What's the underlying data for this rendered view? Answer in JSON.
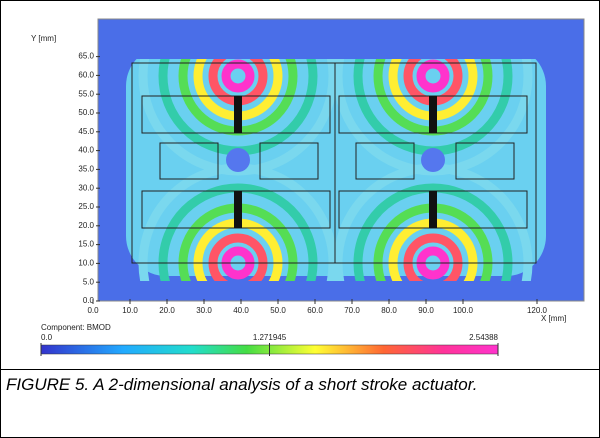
{
  "figure": {
    "caption": "FIGURE 5. A 2-dimensional analysis of a short stroke actuator.",
    "chart_data": {
      "type": "field",
      "ylabel": "Y [mm]",
      "xlabel": "X [mm]",
      "xlim": [
        0,
        132
      ],
      "ylim": [
        0,
        75
      ],
      "xticks": [
        {
          "value": 0,
          "label": "0.0"
        },
        {
          "value": 10,
          "label": "10.0"
        },
        {
          "value": 20,
          "label": "20.0"
        },
        {
          "value": 30,
          "label": "30.0"
        },
        {
          "value": 40,
          "label": "40.0"
        },
        {
          "value": 50,
          "label": "50.0"
        },
        {
          "value": 60,
          "label": "60.0"
        },
        {
          "value": 70,
          "label": "70.0"
        },
        {
          "value": 80,
          "label": "80.0"
        },
        {
          "value": 90,
          "label": "90.0"
        },
        {
          "value": 100,
          "label": "100.0"
        },
        {
          "value": 120,
          "label": "120.0"
        }
      ],
      "yticks": [
        {
          "value": 0,
          "label": "0.0"
        },
        {
          "value": 5,
          "label": "5.0"
        },
        {
          "value": 10,
          "label": "10.0"
        },
        {
          "value": 15,
          "label": "15.0"
        },
        {
          "value": 20,
          "label": "20.0"
        },
        {
          "value": 25,
          "label": "25.0"
        },
        {
          "value": 30,
          "label": "30.0"
        },
        {
          "value": 35,
          "label": "35.0"
        },
        {
          "value": 40,
          "label": "40.0"
        },
        {
          "value": 45,
          "label": "45.0"
        },
        {
          "value": 50,
          "label": "50.0"
        },
        {
          "value": 55,
          "label": "55.0"
        },
        {
          "value": 60,
          "label": "60.0"
        },
        {
          "value": 65,
          "label": "65.0"
        }
      ],
      "colorbar": {
        "label": "Component: BMOD",
        "lim": [
          0,
          2.54388
        ],
        "ticks": [
          {
            "value": 0,
            "label": "0.0"
          },
          1.271945,
          2.54388
        ]
      }
    }
  }
}
